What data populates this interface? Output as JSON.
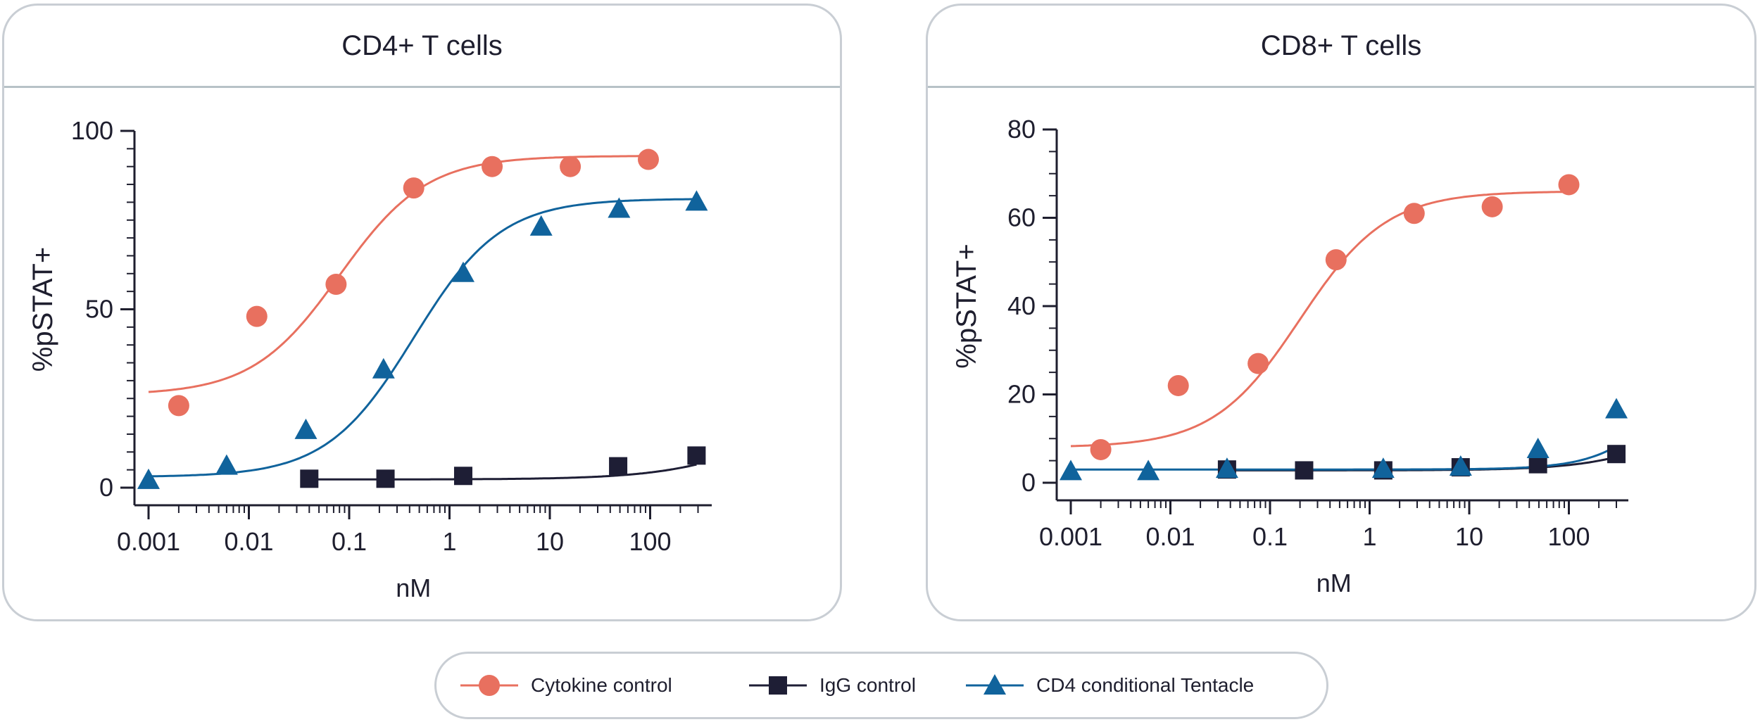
{
  "colors": {
    "cytokine": "#e8705f",
    "igg": "#1e1e35",
    "tentacle": "#10639c",
    "axis": "#1e1e2e",
    "border": "#c9ced4"
  },
  "x_tick_labels": [
    "0.001",
    "0.01",
    "0.1",
    "1",
    "10",
    "100"
  ],
  "legend": {
    "items": [
      {
        "label": "Cytokine control",
        "marker": "circle",
        "color": "#e8705f"
      },
      {
        "label": "IgG control",
        "marker": "square",
        "color": "#1e1e35"
      },
      {
        "label": "CD4 conditional Tentacle",
        "marker": "triangle",
        "color": "#10639c"
      }
    ]
  },
  "chart_data": [
    {
      "type": "scatter",
      "title": "CD4+ T cells",
      "xlabel": "nM",
      "ylabel": "%pSTAT+",
      "xscale": "log",
      "xlim": [
        0.001,
        300
      ],
      "ylim": [
        0,
        100
      ],
      "y_ticks": [
        0,
        50,
        100
      ],
      "y_tick_labels": [
        "0",
        "50",
        "100"
      ],
      "series": [
        {
          "name": "Cytokine control",
          "marker": "circle",
          "x": [
            0.002,
            0.012,
            0.074,
            0.44,
            2.66,
            16,
            96
          ],
          "y": [
            23,
            48,
            57,
            84,
            90,
            90,
            92
          ],
          "fit": {
            "bottom": 26,
            "top": 93,
            "ec50": 0.08,
            "hill": 1.0
          }
        },
        {
          "name": "IgG control",
          "marker": "square",
          "x": [
            0.04,
            0.23,
            1.37,
            48,
            290
          ],
          "y": [
            2.5,
            2.5,
            3.3,
            6,
            9
          ],
          "fit": {
            "bottom": 2.3,
            "top": 30,
            "ec50": 2500,
            "hill": 0.8
          }
        },
        {
          "name": "CD4 conditional Tentacle",
          "marker": "triangle",
          "x": [
            0.001,
            0.006,
            0.037,
            0.22,
            1.37,
            8.2,
            49,
            290
          ],
          "y": [
            2,
            6,
            16,
            33,
            60,
            73,
            78,
            80
          ],
          "fit": {
            "bottom": 3,
            "top": 81,
            "ec50": 0.44,
            "hill": 1.0
          }
        }
      ]
    },
    {
      "type": "scatter",
      "title": "CD8+ T cells",
      "xlabel": "nM",
      "ylabel": "%pSTAT+",
      "xscale": "log",
      "xlim": [
        0.001,
        330
      ],
      "ylim": [
        0,
        80
      ],
      "y_ticks": [
        0,
        20,
        40,
        60,
        80
      ],
      "y_tick_labels": [
        "0",
        "20",
        "40",
        "60",
        "80"
      ],
      "series": [
        {
          "name": "Cytokine control",
          "marker": "circle",
          "x": [
            0.002,
            0.012,
            0.076,
            0.46,
            2.8,
            17,
            100
          ],
          "y": [
            7.5,
            22,
            27,
            50.5,
            61,
            62.5,
            67.5
          ],
          "fit": {
            "bottom": 8,
            "top": 66,
            "ec50": 0.2,
            "hill": 1.0
          }
        },
        {
          "name": "IgG control",
          "marker": "square",
          "x": [
            0.037,
            0.22,
            1.37,
            8.2,
            49,
            300
          ],
          "y": [
            3,
            2.8,
            2.8,
            3.5,
            4.2,
            6.5
          ],
          "fit": {
            "bottom": 2.8,
            "top": 30,
            "ec50": 3000,
            "hill": 0.9
          }
        },
        {
          "name": "CD4 conditional Tentacle",
          "marker": "triangle",
          "x": [
            0.001,
            0.006,
            0.037,
            1.37,
            8.2,
            49,
            300
          ],
          "y": [
            2.5,
            2.5,
            3,
            3,
            3.5,
            7.5,
            16.5
          ],
          "fit": {
            "bottom": 3,
            "top": 60,
            "ec50": 2000,
            "hill": 1.2
          }
        }
      ]
    }
  ]
}
